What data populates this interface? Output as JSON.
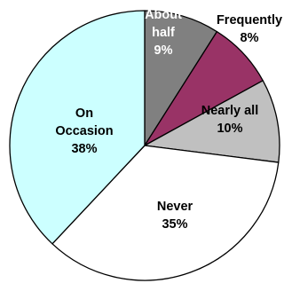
{
  "chart_data": {
    "type": "pie",
    "start_angle_deg": 90,
    "direction": "clockwise",
    "slices": [
      {
        "key": "about_half",
        "lines": [
          "About",
          "half",
          "9%"
        ],
        "value": 9,
        "color": "#808080",
        "text_color": "#ffffff"
      },
      {
        "key": "frequently",
        "lines": [
          "Frequently",
          "8%"
        ],
        "value": 8,
        "color": "#993366",
        "text_color": "#000000"
      },
      {
        "key": "nearly_all",
        "lines": [
          "Nearly all",
          "10%"
        ],
        "value": 10,
        "color": "#c0c0c0",
        "text_color": "#000000"
      },
      {
        "key": "never",
        "lines": [
          "Never",
          "35%"
        ],
        "value": 35,
        "color": "#ffffff",
        "text_color": "#000000"
      },
      {
        "key": "on_occasion",
        "lines": [
          "On",
          "Occasion",
          "38%"
        ],
        "value": 38,
        "color": "#ccffff",
        "text_color": "#000000"
      }
    ]
  }
}
